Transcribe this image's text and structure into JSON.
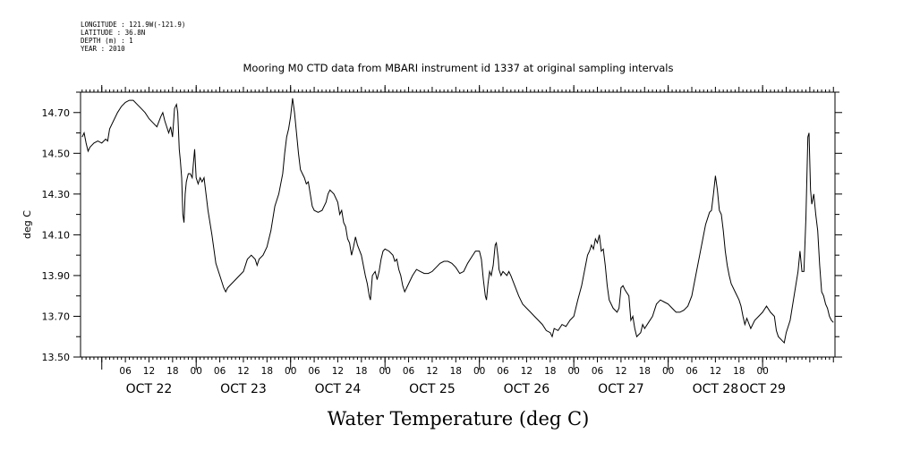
{
  "header": {
    "longitude": "LONGITUDE : 121.9W(-121.9)",
    "latitude": "LATITUDE : 36.8N",
    "depth": "DEPTH (m) : 1",
    "year": "YEAR : 2010"
  },
  "chart_data": {
    "type": "line",
    "title": "Mooring M0 CTD data from MBARI instrument id 1337 at original sampling intervals",
    "xlabel": "Water Temperature (deg C)",
    "ylabel": "deg C",
    "ylim": [
      13.5,
      14.8
    ],
    "yticks": [
      "13.50",
      "13.70",
      "13.90",
      "14.10",
      "14.30",
      "14.50",
      "14.70"
    ],
    "xlim_hours": [
      0,
      165
    ],
    "x_units": "hours since OCT 22 2010 00:00",
    "hour_ticks": [
      {
        "h": 6,
        "label": "06"
      },
      {
        "h": 12,
        "label": "12"
      },
      {
        "h": 18,
        "label": "18"
      },
      {
        "h": 24,
        "label": "00"
      },
      {
        "h": 30,
        "label": "06"
      },
      {
        "h": 36,
        "label": "12"
      },
      {
        "h": 42,
        "label": "18"
      },
      {
        "h": 48,
        "label": "00"
      },
      {
        "h": 54,
        "label": "06"
      },
      {
        "h": 60,
        "label": "12"
      },
      {
        "h": 66,
        "label": "18"
      },
      {
        "h": 72,
        "label": "00"
      },
      {
        "h": 78,
        "label": "06"
      },
      {
        "h": 84,
        "label": "12"
      },
      {
        "h": 90,
        "label": "18"
      },
      {
        "h": 96,
        "label": "00"
      },
      {
        "h": 102,
        "label": "06"
      },
      {
        "h": 108,
        "label": "12"
      },
      {
        "h": 114,
        "label": "18"
      },
      {
        "h": 120,
        "label": "00"
      },
      {
        "h": 126,
        "label": "06"
      },
      {
        "h": 132,
        "label": "12"
      },
      {
        "h": 138,
        "label": "18"
      },
      {
        "h": 144,
        "label": "00"
      },
      {
        "h": 150,
        "label": "06"
      },
      {
        "h": 156,
        "label": "12"
      },
      {
        "h": 162,
        "label": "18"
      },
      {
        "h": 168,
        "label": "00"
      }
    ],
    "day_labels": [
      {
        "h": 12,
        "label": "OCT 22"
      },
      {
        "h": 36,
        "label": "OCT 23"
      },
      {
        "h": 60,
        "label": "OCT 24"
      },
      {
        "h": 84,
        "label": "OCT 25"
      },
      {
        "h": 108,
        "label": "OCT 26"
      },
      {
        "h": 132,
        "label": "OCT 27"
      },
      {
        "h": 156,
        "label": "OCT 28"
      },
      {
        "h": 168,
        "label": "OCT 29"
      }
    ],
    "series": [
      {
        "points": [
          [
            -5,
            14.58
          ],
          [
            -4.5,
            14.6
          ],
          [
            -4,
            14.55
          ],
          [
            -3.5,
            14.51
          ],
          [
            -3,
            14.53
          ],
          [
            -2,
            14.55
          ],
          [
            -1,
            14.56
          ],
          [
            0,
            14.55
          ],
          [
            1,
            14.57
          ],
          [
            1.5,
            14.56
          ],
          [
            2,
            14.62
          ],
          [
            3,
            14.66
          ],
          [
            4,
            14.7
          ],
          [
            5,
            14.73
          ],
          [
            6,
            14.75
          ],
          [
            7,
            14.76
          ],
          [
            8,
            14.76
          ],
          [
            9,
            14.74
          ],
          [
            10,
            14.72
          ],
          [
            11,
            14.7
          ],
          [
            12,
            14.67
          ],
          [
            13,
            14.65
          ],
          [
            14,
            14.63
          ],
          [
            15,
            14.68
          ],
          [
            15.5,
            14.7
          ],
          [
            16,
            14.66
          ],
          [
            17,
            14.6
          ],
          [
            17.5,
            14.63
          ],
          [
            18,
            14.58
          ],
          [
            18.5,
            14.72
          ],
          [
            19,
            14.74
          ],
          [
            19.3,
            14.7
          ],
          [
            19.7,
            14.52
          ],
          [
            20,
            14.46
          ],
          [
            20.3,
            14.38
          ],
          [
            20.6,
            14.2
          ],
          [
            20.9,
            14.16
          ],
          [
            21.2,
            14.3
          ],
          [
            21.5,
            14.36
          ],
          [
            22,
            14.4
          ],
          [
            22.5,
            14.4
          ],
          [
            23,
            14.38
          ],
          [
            23.3,
            14.45
          ],
          [
            23.6,
            14.52
          ],
          [
            24,
            14.38
          ],
          [
            24.5,
            14.35
          ],
          [
            25,
            14.38
          ],
          [
            25.5,
            14.36
          ],
          [
            26,
            14.38
          ],
          [
            26.5,
            14.3
          ],
          [
            27,
            14.22
          ],
          [
            28,
            14.1
          ],
          [
            29,
            13.96
          ],
          [
            30,
            13.9
          ],
          [
            31,
            13.84
          ],
          [
            31.5,
            13.82
          ],
          [
            32,
            13.84
          ],
          [
            33,
            13.86
          ],
          [
            34,
            13.88
          ],
          [
            35,
            13.9
          ],
          [
            36,
            13.92
          ],
          [
            37,
            13.98
          ],
          [
            38,
            14.0
          ],
          [
            39,
            13.98
          ],
          [
            39.5,
            13.95
          ],
          [
            40,
            13.98
          ],
          [
            41,
            14.0
          ],
          [
            42,
            14.04
          ],
          [
            43,
            14.12
          ],
          [
            44,
            14.24
          ],
          [
            45,
            14.3
          ],
          [
            46,
            14.4
          ],
          [
            46.5,
            14.5
          ],
          [
            47,
            14.58
          ],
          [
            47.5,
            14.62
          ],
          [
            48,
            14.68
          ],
          [
            48.5,
            14.77
          ],
          [
            49,
            14.7
          ],
          [
            49.5,
            14.6
          ],
          [
            50,
            14.5
          ],
          [
            50.5,
            14.42
          ],
          [
            51,
            14.4
          ],
          [
            51.5,
            14.38
          ],
          [
            52,
            14.35
          ],
          [
            52.5,
            14.36
          ],
          [
            53,
            14.3
          ],
          [
            53.5,
            14.24
          ],
          [
            54,
            14.22
          ],
          [
            55,
            14.21
          ],
          [
            56,
            14.22
          ],
          [
            57,
            14.26
          ],
          [
            57.5,
            14.3
          ],
          [
            58,
            14.32
          ],
          [
            59,
            14.3
          ],
          [
            60,
            14.26
          ],
          [
            60.5,
            14.2
          ],
          [
            61,
            14.22
          ],
          [
            61.5,
            14.16
          ],
          [
            62,
            14.14
          ],
          [
            62.5,
            14.08
          ],
          [
            63,
            14.06
          ],
          [
            63.5,
            14.0
          ],
          [
            64,
            14.04
          ],
          [
            64.5,
            14.09
          ],
          [
            65,
            14.05
          ],
          [
            66,
            14.0
          ],
          [
            66.5,
            13.95
          ],
          [
            67,
            13.9
          ],
          [
            67.5,
            13.86
          ],
          [
            68,
            13.8
          ],
          [
            68.3,
            13.78
          ],
          [
            68.8,
            13.9
          ],
          [
            69.5,
            13.92
          ],
          [
            70,
            13.88
          ],
          [
            70.5,
            13.92
          ],
          [
            71,
            13.98
          ],
          [
            71.5,
            14.02
          ],
          [
            72,
            14.03
          ],
          [
            73,
            14.02
          ],
          [
            74,
            14.0
          ],
          [
            74.5,
            13.97
          ],
          [
            75,
            13.98
          ],
          [
            75.5,
            13.93
          ],
          [
            76,
            13.9
          ],
          [
            76.5,
            13.85
          ],
          [
            77,
            13.82
          ],
          [
            77.5,
            13.84
          ],
          [
            78,
            13.86
          ],
          [
            79,
            13.9
          ],
          [
            80,
            13.93
          ],
          [
            81,
            13.92
          ],
          [
            82,
            13.91
          ],
          [
            83,
            13.91
          ],
          [
            84,
            13.92
          ],
          [
            85,
            13.94
          ],
          [
            86,
            13.96
          ],
          [
            87,
            13.97
          ],
          [
            88,
            13.97
          ],
          [
            89,
            13.96
          ],
          [
            90,
            13.94
          ],
          [
            91,
            13.91
          ],
          [
            92,
            13.92
          ],
          [
            93,
            13.96
          ],
          [
            94,
            13.99
          ],
          [
            95,
            14.02
          ],
          [
            96,
            14.02
          ],
          [
            96.5,
            13.98
          ],
          [
            97,
            13.88
          ],
          [
            97.5,
            13.8
          ],
          [
            97.8,
            13.78
          ],
          [
            98.2,
            13.86
          ],
          [
            98.6,
            13.92
          ],
          [
            99,
            13.9
          ],
          [
            99.5,
            13.95
          ],
          [
            100,
            14.05
          ],
          [
            100.3,
            14.06
          ],
          [
            100.8,
            13.98
          ],
          [
            101,
            13.93
          ],
          [
            101.5,
            13.9
          ],
          [
            102,
            13.92
          ],
          [
            103,
            13.9
          ],
          [
            103.5,
            13.92
          ],
          [
            104,
            13.9
          ],
          [
            105,
            13.85
          ],
          [
            106,
            13.8
          ],
          [
            107,
            13.76
          ],
          [
            108,
            13.74
          ],
          [
            109,
            13.72
          ],
          [
            110,
            13.7
          ],
          [
            111,
            13.68
          ],
          [
            112,
            13.66
          ],
          [
            113,
            13.63
          ],
          [
            114,
            13.62
          ],
          [
            114.5,
            13.6
          ],
          [
            115,
            13.64
          ],
          [
            116,
            13.63
          ],
          [
            117,
            13.66
          ],
          [
            118,
            13.65
          ],
          [
            119,
            13.68
          ],
          [
            120,
            13.7
          ],
          [
            121,
            13.78
          ],
          [
            122,
            13.85
          ],
          [
            123,
            13.95
          ],
          [
            123.5,
            14.0
          ],
          [
            124,
            14.02
          ],
          [
            124.5,
            14.05
          ],
          [
            125,
            14.03
          ],
          [
            125.5,
            14.08
          ],
          [
            126,
            14.06
          ],
          [
            126.5,
            14.1
          ],
          [
            127,
            14.02
          ],
          [
            127.5,
            14.03
          ],
          [
            128,
            13.95
          ],
          [
            128.5,
            13.85
          ],
          [
            129,
            13.78
          ],
          [
            130,
            13.74
          ],
          [
            131,
            13.72
          ],
          [
            131.5,
            13.74
          ],
          [
            132,
            13.84
          ],
          [
            132.5,
            13.85
          ],
          [
            133,
            13.83
          ],
          [
            134,
            13.8
          ],
          [
            134.5,
            13.68
          ],
          [
            135,
            13.7
          ],
          [
            135.5,
            13.64
          ],
          [
            136,
            13.6
          ],
          [
            137,
            13.62
          ],
          [
            137.5,
            13.66
          ],
          [
            138,
            13.64
          ],
          [
            139,
            13.67
          ],
          [
            140,
            13.7
          ],
          [
            141,
            13.76
          ],
          [
            142,
            13.78
          ],
          [
            143,
            13.77
          ],
          [
            144,
            13.76
          ],
          [
            145,
            13.74
          ],
          [
            146,
            13.72
          ],
          [
            147,
            13.72
          ],
          [
            148,
            13.73
          ],
          [
            149,
            13.75
          ],
          [
            150,
            13.8
          ],
          [
            151,
            13.9
          ],
          [
            152,
            14.0
          ],
          [
            153,
            14.1
          ],
          [
            153.5,
            14.15
          ],
          [
            154,
            14.18
          ],
          [
            154.5,
            14.21
          ],
          [
            155,
            14.22
          ],
          [
            155.5,
            14.3
          ],
          [
            156,
            14.39
          ],
          [
            156.5,
            14.32
          ],
          [
            157,
            14.22
          ],
          [
            157.5,
            14.2
          ],
          [
            158,
            14.12
          ],
          [
            158.5,
            14.02
          ],
          [
            159,
            13.95
          ],
          [
            159.5,
            13.9
          ],
          [
            160,
            13.86
          ],
          [
            161,
            13.82
          ],
          [
            162,
            13.78
          ],
          [
            162.5,
            13.75
          ],
          [
            163,
            13.7
          ],
          [
            163.5,
            13.66
          ],
          [
            164,
            13.69
          ],
          [
            165,
            13.64
          ],
          [
            166,
            13.68
          ],
          [
            167,
            13.7
          ],
          [
            168,
            13.72
          ],
          [
            169,
            13.75
          ],
          [
            170,
            13.72
          ],
          [
            171,
            13.7
          ],
          [
            171.5,
            13.63
          ],
          [
            172,
            13.6
          ],
          [
            173,
            13.58
          ],
          [
            173.5,
            13.57
          ],
          [
            174,
            13.62
          ],
          [
            175,
            13.68
          ],
          [
            176,
            13.8
          ],
          [
            177,
            13.92
          ],
          [
            177.5,
            14.02
          ],
          [
            178,
            13.92
          ],
          [
            178.5,
            13.92
          ],
          [
            179,
            14.18
          ],
          [
            179.5,
            14.58
          ],
          [
            179.8,
            14.6
          ],
          [
            180.2,
            14.32
          ],
          [
            180.5,
            14.25
          ],
          [
            181,
            14.3
          ],
          [
            181.5,
            14.2
          ],
          [
            182,
            14.12
          ],
          [
            182.5,
            13.95
          ],
          [
            183,
            13.82
          ],
          [
            183.5,
            13.8
          ],
          [
            184,
            13.76
          ],
          [
            184.5,
            13.74
          ],
          [
            185,
            13.7
          ],
          [
            185.5,
            13.68
          ],
          [
            186,
            13.67
          ]
        ]
      }
    ]
  }
}
